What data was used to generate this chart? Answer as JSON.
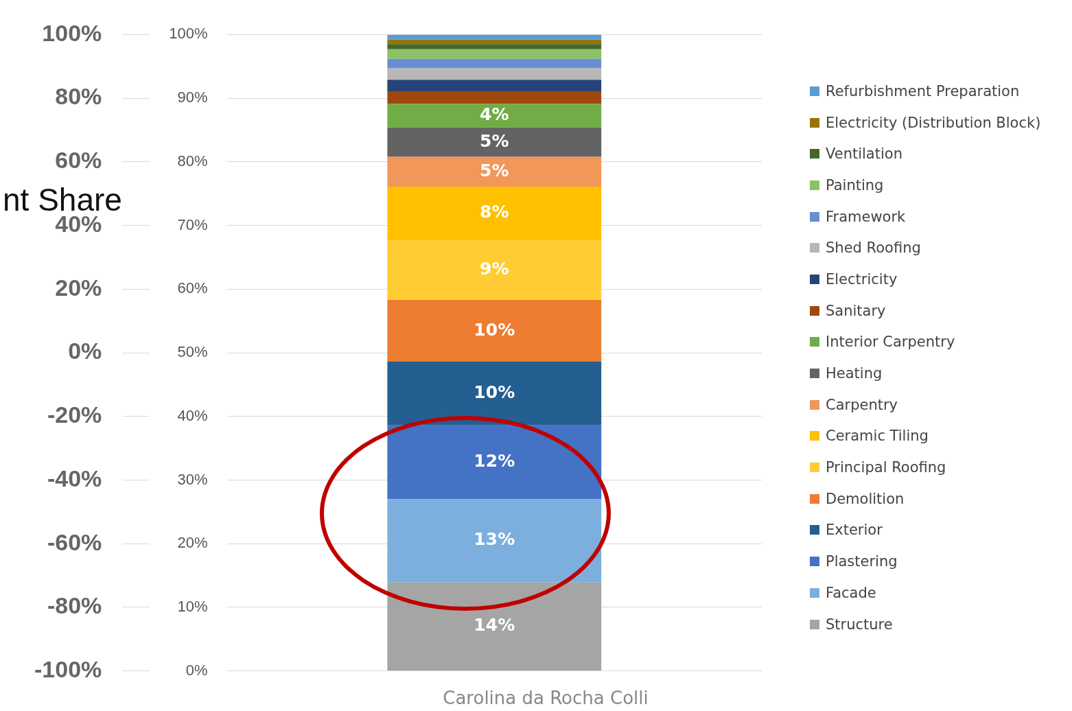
{
  "chart_data": {
    "type": "bar",
    "stacked": true,
    "categories": [
      null
    ],
    "ylim": [
      0,
      100
    ],
    "yticks": [
      {
        "value": 0,
        "label": "0%"
      },
      {
        "value": 10,
        "label": "10%"
      },
      {
        "value": 20,
        "label": "20%"
      },
      {
        "value": 30,
        "label": "30%"
      },
      {
        "value": 40,
        "label": "40%"
      },
      {
        "value": 50,
        "label": "50%"
      },
      {
        "value": 60,
        "label": "60%"
      },
      {
        "value": 70,
        "label": "70%"
      },
      {
        "value": 80,
        "label": "80%"
      },
      {
        "value": 90,
        "label": "90%"
      },
      {
        "value": 100,
        "label": "100%"
      }
    ],
    "y2lim": [
      -100,
      100
    ],
    "y2ticks": [
      {
        "value": -100,
        "label": "-100%"
      },
      {
        "value": -80,
        "label": "-80%"
      },
      {
        "value": -60,
        "label": "-60%"
      },
      {
        "value": -40,
        "label": "-40%"
      },
      {
        "value": -20,
        "label": "-20%"
      },
      {
        "value": 0,
        "label": "0%"
      },
      {
        "value": 20,
        "label": "20%"
      },
      {
        "value": 40,
        "label": "40%"
      },
      {
        "value": 60,
        "label": "60%"
      },
      {
        "value": 80,
        "label": "80%"
      },
      {
        "value": 100,
        "label": "100%"
      }
    ],
    "grid": "y",
    "legend": "right",
    "annotations": [
      "nt Share",
      "Carolina da Rocha Colli"
    ],
    "series": [
      {
        "name": "Structure",
        "color": "#a5a5a5",
        "values": [
          13.9
        ],
        "value_labels": [
          "14%"
        ]
      },
      {
        "name": "Facade",
        "color": "#7cafdd",
        "values": [
          13.1
        ],
        "value_labels": [
          "13%"
        ]
      },
      {
        "name": "Plastering",
        "color": "#4472c4",
        "values": [
          11.6
        ],
        "value_labels": [
          "12%"
        ]
      },
      {
        "name": "Exterior",
        "color": "#255e91",
        "values": [
          10.0
        ],
        "value_labels": [
          "10%"
        ]
      },
      {
        "name": "Demolition",
        "color": "#ed7d31",
        "values": [
          9.7
        ],
        "value_labels": [
          "10%"
        ]
      },
      {
        "name": "Principal Roofing",
        "color": "#ffcd33",
        "values": [
          9.4
        ],
        "value_labels": [
          "9%"
        ]
      },
      {
        "name": "Ceramic Tiling",
        "color": "#ffc000",
        "values": [
          8.4
        ],
        "value_labels": [
          "8%"
        ]
      },
      {
        "name": "Carpentry",
        "color": "#f1975a",
        "values": [
          4.7
        ],
        "value_labels": [
          "5%"
        ]
      },
      {
        "name": "Heating",
        "color": "#636363",
        "values": [
          4.6
        ],
        "value_labels": [
          "5%"
        ]
      },
      {
        "name": "Interior Carpentry",
        "color": "#70ad47",
        "values": [
          3.7
        ],
        "value_labels": [
          "4%"
        ]
      },
      {
        "name": "Sanitary",
        "color": "#9e480e",
        "values": [
          2.0
        ]
      },
      {
        "name": "Electricity",
        "color": "#264478",
        "values": [
          1.8
        ]
      },
      {
        "name": "Shed Roofing",
        "color": "#b7b7b7",
        "values": [
          1.8
        ]
      },
      {
        "name": "Framework",
        "color": "#698ed0",
        "values": [
          1.5
        ]
      },
      {
        "name": "Painting",
        "color": "#8cc168",
        "values": [
          1.5
        ]
      },
      {
        "name": "Ventilation",
        "color": "#43682b",
        "values": [
          0.8
        ]
      },
      {
        "name": "Electricity (Distribution Block)",
        "color": "#997300",
        "values": [
          0.7
        ]
      },
      {
        "name": "Refurbishment Preparation",
        "color": "#5b9bd5",
        "values": [
          0.8
        ]
      }
    ]
  }
}
